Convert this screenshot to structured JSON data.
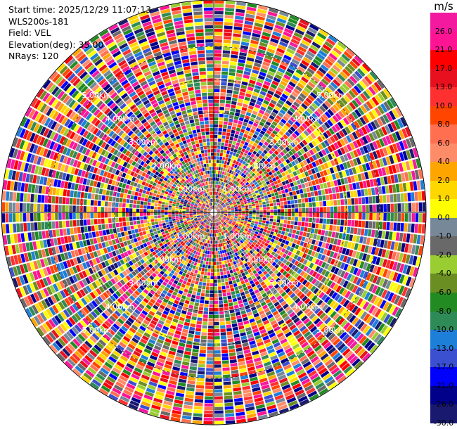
{
  "info": {
    "start_time": "Start time: 2025/12/29 11:07:13",
    "station": "WLS200s-181",
    "field": "Field: VEL",
    "elevation": "Elevation(deg): 35.00",
    "nrays": "NRays: 120"
  },
  "colorbar": {
    "unit": "m/s",
    "tick_labels": [
      "26.0",
      "21.0",
      "17.0",
      "13.0",
      "10.0",
      "8.0",
      "6.0",
      "4.0",
      "2.0",
      "1.0",
      "0.0",
      "-1.0",
      "-2.0",
      "-4.0",
      "-6.0",
      "-8.0",
      "-10.0",
      "-13.0",
      "-17.0",
      "-21.0",
      "-26.0",
      "-30.0"
    ],
    "colors": [
      "#f41aa0",
      "#ff1493",
      "#ff0000",
      "#e8101e",
      "#ff3030",
      "#ff4500",
      "#ff6f50",
      "#ff8c69",
      "#ffa500",
      "#ffd700",
      "#ffff00",
      "#778899",
      "#696969",
      "#9acd32",
      "#6b8e23",
      "#228b22",
      "#2e8b57",
      "#1e7fd8",
      "#3a50d0",
      "#0000ff",
      "#00008b",
      "#191970"
    ]
  },
  "chart_data": {
    "type": "ppi",
    "field": "VEL",
    "units": "m/s",
    "nrays": 120,
    "elevation_deg": 35.0,
    "range_rings_km": [
      1.0,
      2.0,
      3.0,
      4.0,
      5.0
    ],
    "range_ring_labels": [
      "1.00km",
      "2.00km",
      "3.00km",
      "4.00km",
      "5.00km"
    ],
    "max_range_km": 6.4,
    "range_gates": 60,
    "colorbar_levels": [
      26.0,
      21.0,
      17.0,
      13.0,
      10.0,
      8.0,
      6.0,
      4.0,
      2.0,
      1.0,
      0.0,
      -1.0,
      -2.0,
      -4.0,
      -6.0,
      -8.0,
      -10.0,
      -13.0,
      -17.0,
      -21.0,
      -26.0,
      -30.0
    ]
  }
}
